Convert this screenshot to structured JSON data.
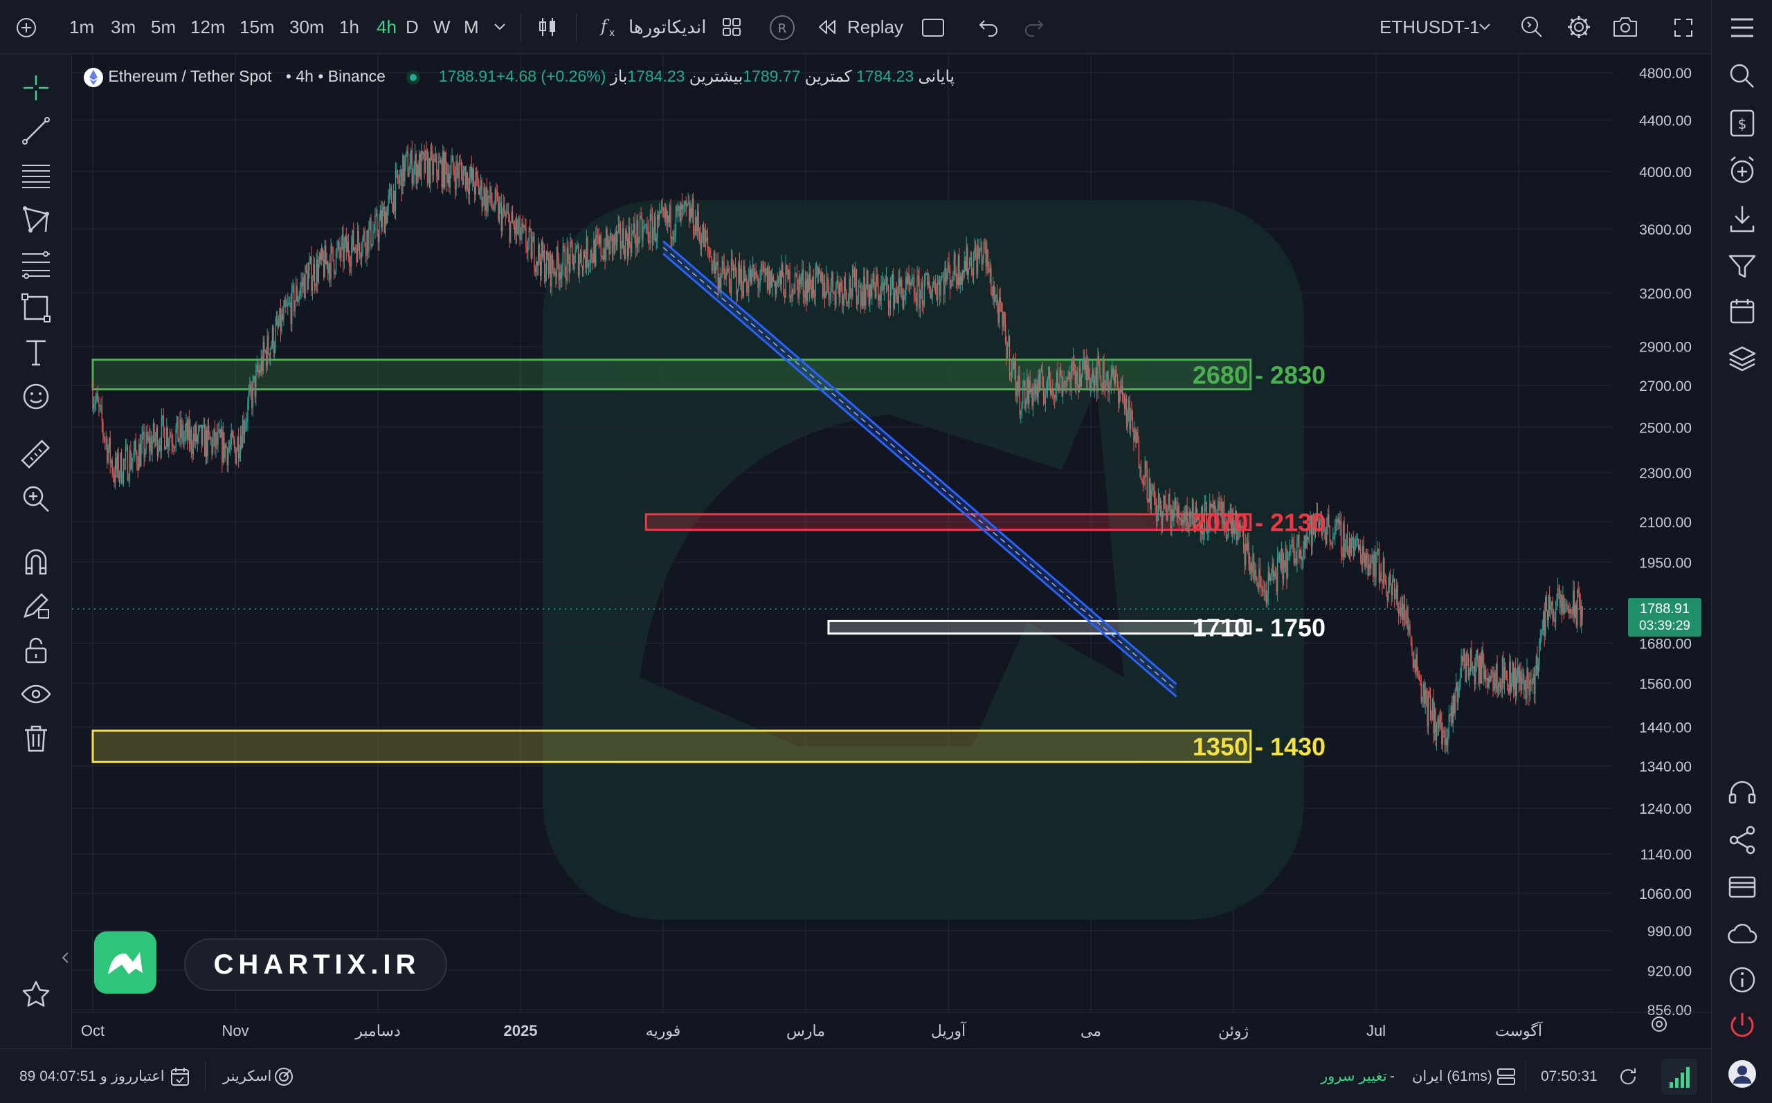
{
  "toolbar": {
    "intervals": [
      {
        "label": "1m",
        "active": false
      },
      {
        "label": "3m",
        "active": false
      },
      {
        "label": "5m",
        "active": false
      },
      {
        "label": "12m",
        "active": false
      },
      {
        "label": "15m",
        "active": false
      },
      {
        "label": "30m",
        "active": false
      },
      {
        "label": "1h",
        "active": false
      },
      {
        "label": "4h",
        "active": true
      },
      {
        "label": "D",
        "active": false
      },
      {
        "label": "W",
        "active": false
      },
      {
        "label": "M",
        "active": false
      }
    ],
    "indicators_label": "اندیکاتورها",
    "replay_label": "Replay",
    "replay_badge": "R",
    "symbol": "ETHUSDT-1"
  },
  "legend": {
    "symbol_name": "Ethereum / Tether Spot",
    "interval": "4h",
    "exchange": "Binance",
    "dot": "•",
    "open_label": "باز",
    "open": "1784.23",
    "high_label": "بیشترین",
    "high": "1789.77",
    "low_label": "کمترین",
    "low": "1784.23",
    "close_label": "پایانی",
    "close": "1788.91",
    "change": "+4.68 (+0.26%)"
  },
  "chart_data": {
    "type": "candlestick",
    "y_scale": "log",
    "ylim": [
      856,
      4800
    ],
    "y_ticks": [
      "4800.00",
      "4400.00",
      "4000.00",
      "3600.00",
      "3200.00",
      "2900.00",
      "2700.00",
      "2500.00",
      "2300.00",
      "2100.00",
      "1950.00",
      "1680.00",
      "1560.00",
      "1440.00",
      "1340.00",
      "1240.00",
      "1140.00",
      "1060.00",
      "990.00",
      "920.00",
      "856.00"
    ],
    "x_ticks": [
      "Oct",
      "Nov",
      "دسامبر",
      "2025",
      "فوریه",
      "مارس",
      "آوریل",
      "می",
      "ژوئن",
      "Jul",
      "آگوست"
    ],
    "x_tick_bold": "2025",
    "price_path": [
      [
        0,
        2680
      ],
      [
        0.15,
        2300
      ],
      [
        0.5,
        2480
      ],
      [
        1,
        2400
      ],
      [
        1.2,
        2850
      ],
      [
        1.5,
        3300
      ],
      [
        2,
        3600
      ],
      [
        2.2,
        4050
      ],
      [
        2.6,
        4000
      ],
      [
        3.2,
        3350
      ],
      [
        4.2,
        3700
      ],
      [
        4.4,
        3300
      ],
      [
        5.8,
        3200
      ],
      [
        6.25,
        3450
      ],
      [
        6.5,
        2650
      ],
      [
        7,
        2780
      ],
      [
        7.2,
        2700
      ],
      [
        7.45,
        2150
      ],
      [
        8,
        2100
      ],
      [
        8.2,
        1850
      ],
      [
        8.6,
        2100
      ],
      [
        9,
        1950
      ],
      [
        9.2,
        1780
      ],
      [
        9.35,
        1500
      ],
      [
        9.5,
        1400
      ],
      [
        9.6,
        1620
      ],
      [
        10.1,
        1560
      ],
      [
        10.2,
        1800
      ],
      [
        10.45,
        1789
      ]
    ],
    "current_price": "1788.91",
    "countdown": "03:39:29",
    "zones": [
      {
        "label": "2680 - 2830",
        "low": 2680,
        "high": 2830,
        "from": 0,
        "to": 8.12,
        "color": "#4caf50"
      },
      {
        "label": "2070 - 2130",
        "low": 2070,
        "high": 2130,
        "from": 3.88,
        "to": 8.12,
        "color": "#f23645"
      },
      {
        "label": "1710 - 1750",
        "low": 1710,
        "high": 1750,
        "from": 5.16,
        "to": 8.12,
        "color": "#ffffff"
      },
      {
        "label": "1350 - 1430",
        "low": 1350,
        "high": 1430,
        "from": 0,
        "to": 8.12,
        "color": "#f5e142"
      }
    ],
    "trendline": {
      "from": [
        4.0,
        3480
      ],
      "to": [
        7.6,
        1540
      ],
      "color": "#2962ff"
    },
    "grid": true
  },
  "branding": {
    "text": "CHARTIX.IR"
  },
  "bottombar": {
    "credit_label": "اعتبار",
    "credit_value": "89 روز و 04:07:51",
    "screener_label": "اسکرینر",
    "clock": "07:50:31",
    "server": "ایران (61ms)",
    "separator": "-",
    "change_server": "تغییر سرور"
  }
}
